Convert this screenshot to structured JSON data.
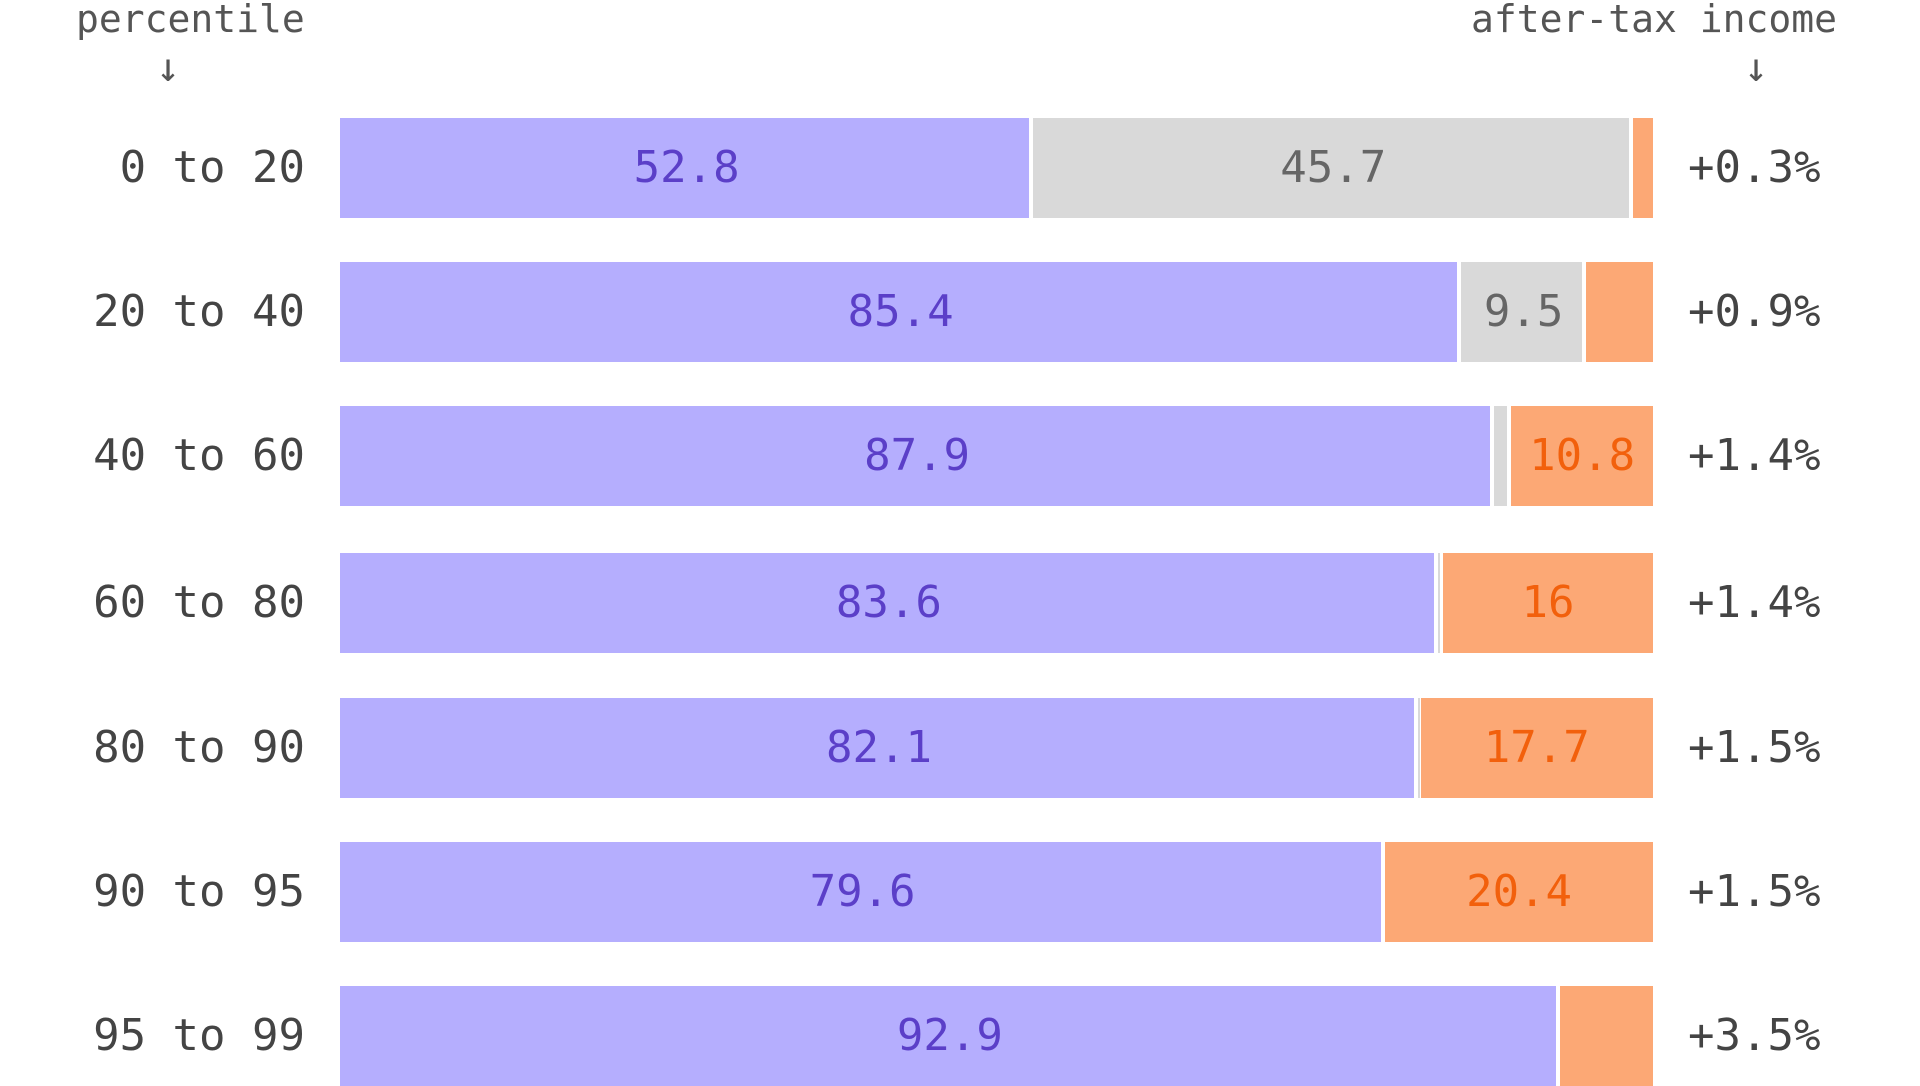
{
  "header": {
    "left_title": "percentile",
    "right_title": "after-tax income",
    "arrow_glyph": "↓"
  },
  "colors": {
    "share_a": "#b5aefe",
    "share_a_text": "#5b3fc8",
    "share_b": "#d9d9d9",
    "share_b_text": "#666666",
    "share_c": "#fca875",
    "share_c_text": "#f2600c",
    "row_label_text": "#444444"
  },
  "chart_data": {
    "type": "bar",
    "orientation": "horizontal",
    "stacked": true,
    "categories": [
      "0 to 20",
      "20 to 40",
      "40 to 60",
      "60 to 80",
      "80 to 90",
      "90 to 95",
      "95 to 99"
    ],
    "series": [
      {
        "values": [
          52.8,
          85.4,
          87.9,
          83.6,
          82.1,
          79.6,
          92.9
        ],
        "labels": [
          "52.8",
          "85.4",
          "87.9",
          "83.6",
          "82.1",
          "79.6",
          "92.9"
        ]
      },
      {
        "values": [
          45.7,
          9.5,
          1.3,
          0.4,
          0.2,
          0,
          0
        ],
        "labels": [
          "45.7",
          "9.5",
          "",
          "",
          "",
          "",
          ""
        ]
      },
      {
        "values": [
          1.5,
          5.1,
          10.8,
          16,
          17.7,
          20.4,
          7.1
        ],
        "labels": [
          "",
          "",
          "10.8",
          "16",
          "17.7",
          "20.4",
          ""
        ]
      }
    ],
    "right_labels": [
      "+0.3%",
      "+0.9%",
      "+1.4%",
      "+1.4%",
      "+1.5%",
      "+1.5%",
      "+3.5%"
    ],
    "xlim": [
      0,
      100
    ],
    "grid": false,
    "legend": "none"
  }
}
